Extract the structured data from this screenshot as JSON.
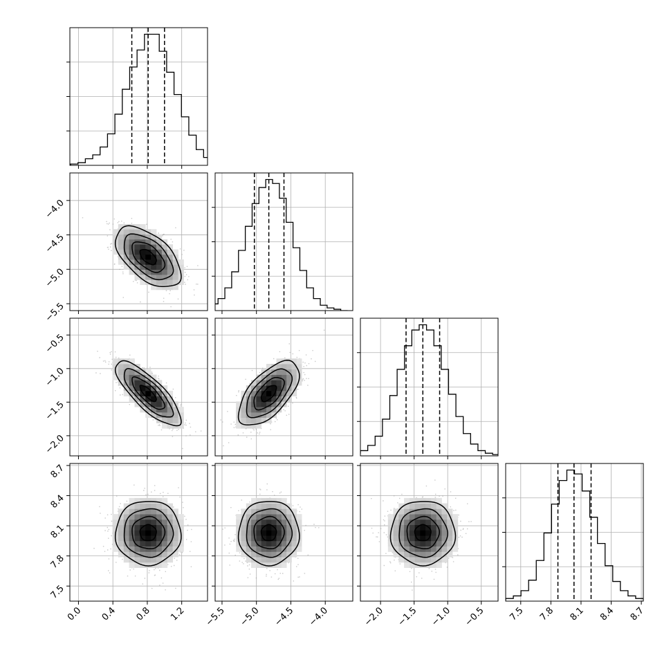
{
  "chart_data": {
    "type": "corner",
    "n_params": 4,
    "grid": true,
    "params": [
      {
        "range": [
          -0.1,
          1.5
        ],
        "ticks": [
          0.0,
          0.4,
          0.8,
          1.2
        ],
        "tick_labels": [
          "0.0",
          "0.4",
          "0.8",
          "1.2"
        ],
        "quantiles": [
          0.62,
          0.81,
          1.0
        ],
        "mean": 0.81,
        "sd": 0.19,
        "hist_counts": [
          0,
          1,
          2,
          5,
          8,
          14,
          24,
          39,
          58,
          75,
          88,
          100,
          100,
          87,
          71,
          54,
          37,
          23,
          12,
          6,
          3,
          1,
          0
        ]
      },
      {
        "range": [
          -5.6,
          -3.6
        ],
        "ticks": [
          -5.5,
          -5.0,
          -4.5,
          -4.0
        ],
        "tick_labels": [
          "−5.5",
          "−5.0",
          "−4.5",
          "−4.0"
        ],
        "ticks_y": [
          -5.5,
          -5.0,
          -4.5,
          -4.0
        ],
        "tick_labels_y": [
          "−5.5",
          "−5.0",
          "−4.5",
          "−4.0"
        ],
        "quantiles": [
          -5.03,
          -4.82,
          -4.6
        ],
        "mean": -4.82,
        "sd": 0.22,
        "hist_counts": [
          0,
          1,
          2,
          5,
          9,
          17,
          29,
          45,
          63,
          80,
          92,
          98,
          95,
          84,
          66,
          47,
          30,
          17,
          9,
          4,
          2,
          1,
          0
        ]
      },
      {
        "range": [
          -2.3,
          -0.25
        ],
        "ticks": [
          -2.0,
          -1.5,
          -1.0,
          -0.5
        ],
        "tick_labels": [
          "−2.0",
          "−1.5",
          "−1.0",
          "−0.5"
        ],
        "ticks_y": [
          -2.0,
          -1.5,
          -1.0,
          -0.5
        ],
        "tick_labels_y": [
          "−2.0",
          "−1.5",
          "−1.0",
          "−0.5"
        ],
        "quantiles": [
          -1.62,
          -1.37,
          -1.12
        ],
        "mean": -1.37,
        "sd": 0.24,
        "hist_counts": [
          0,
          1,
          2,
          4,
          8,
          15,
          28,
          46,
          66,
          84,
          96,
          100,
          96,
          84,
          66,
          47,
          30,
          17,
          9,
          4,
          2,
          1,
          0
        ]
      },
      {
        "range": [
          7.35,
          8.72
        ],
        "ticks": [
          7.5,
          7.8,
          8.1,
          8.4,
          8.7
        ],
        "tick_labels": [
          "7.5",
          "7.8",
          "8.1",
          "8.4",
          "8.7"
        ],
        "ticks_y": [
          7.5,
          7.8,
          8.1,
          8.4,
          8.7
        ],
        "tick_labels_y": [
          "7.5",
          "7.8",
          "8.1",
          "8.4",
          "8.7"
        ],
        "quantiles": [
          7.87,
          8.03,
          8.2
        ],
        "mean": 8.03,
        "sd": 0.16,
        "hist_counts": [
          0,
          1,
          2,
          4,
          8,
          16,
          31,
          52,
          74,
          92,
          100,
          97,
          84,
          64,
          44,
          27,
          15,
          8,
          4,
          2,
          1,
          0
        ]
      }
    ],
    "correlations": [
      [
        1.0,
        -0.55,
        -0.8,
        0.0
      ],
      [
        -0.55,
        1.0,
        0.62,
        0.0
      ],
      [
        -0.8,
        0.62,
        1.0,
        0.0
      ],
      [
        0.0,
        0.0,
        0.0,
        1.0
      ]
    ],
    "contour_levels_sigma": [
      0.5,
      1.0,
      1.5,
      2.0
    ],
    "colors": {
      "line": "#000000",
      "grid": "#b0b0b0",
      "points": "#9a9a9a"
    }
  }
}
